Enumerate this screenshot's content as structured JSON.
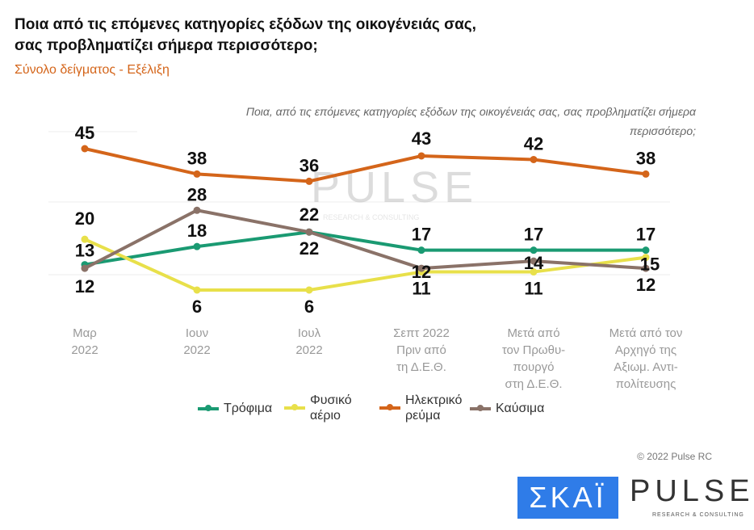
{
  "header": {
    "title_line1": "Ποια από τις επόμενες κατηγορίες εξόδων της οικογένειάς σας,",
    "title_line2": "σας προβληματίζει σήμερα περισσότερο;",
    "subtitle": "Σύνολο δείγματος - Εξέλιξη"
  },
  "chart_data": {
    "type": "line",
    "title": "Ποια, από τις επόμενες κατηγορίες εξόδων της οικογένειάς σας, σας προβληματίζει σήμερα περισσότερο;",
    "categories": [
      [
        "Μαρ",
        "2022"
      ],
      [
        "Ιουν",
        "2022"
      ],
      [
        "Ιουλ",
        "2022"
      ],
      [
        "Σεπτ 2022",
        "Πριν από",
        "τη Δ.Ε.Θ."
      ],
      [
        "Μετά από",
        "τον Πρωθυ-",
        "πουργό",
        "στη Δ.Ε.Θ."
      ],
      [
        "Μετά από τον",
        "Αρχηγό της",
        "Αξιωμ. Αντι-",
        "πολίτευσης"
      ]
    ],
    "series": [
      {
        "name": "Τρόφιμα",
        "color": "#1a9a72",
        "values": [
          13,
          18,
          22,
          17,
          17,
          17
        ]
      },
      {
        "name": "Φυσικό αέριο",
        "color": "#e8e04a",
        "values": [
          20,
          6,
          6,
          11,
          11,
          15
        ]
      },
      {
        "name": "Ηλεκτρικό ρεύμα",
        "color": "#d4651a",
        "values": [
          45,
          38,
          36,
          43,
          42,
          38
        ]
      },
      {
        "name": "Καύσιμα",
        "color": "#8a7268",
        "values": [
          12,
          28,
          22,
          12,
          14,
          12
        ]
      }
    ],
    "legend": [
      "Τρόφιμα",
      "Φυσικό\nαέριο",
      "Ηλεκτρικό\nρεύμα",
      "Καύσιμα"
    ],
    "legend_position": "bottom",
    "grid": true
  },
  "watermark": "PULSE RESEARCH & CONSULTING",
  "footer": {
    "copyright": "© 2022 Pulse RC",
    "logo_skai": "ΣΚΑΪ",
    "logo_pulse": "PULSE",
    "logo_pulse_sub": "RESEARCH & CONSULTING"
  }
}
